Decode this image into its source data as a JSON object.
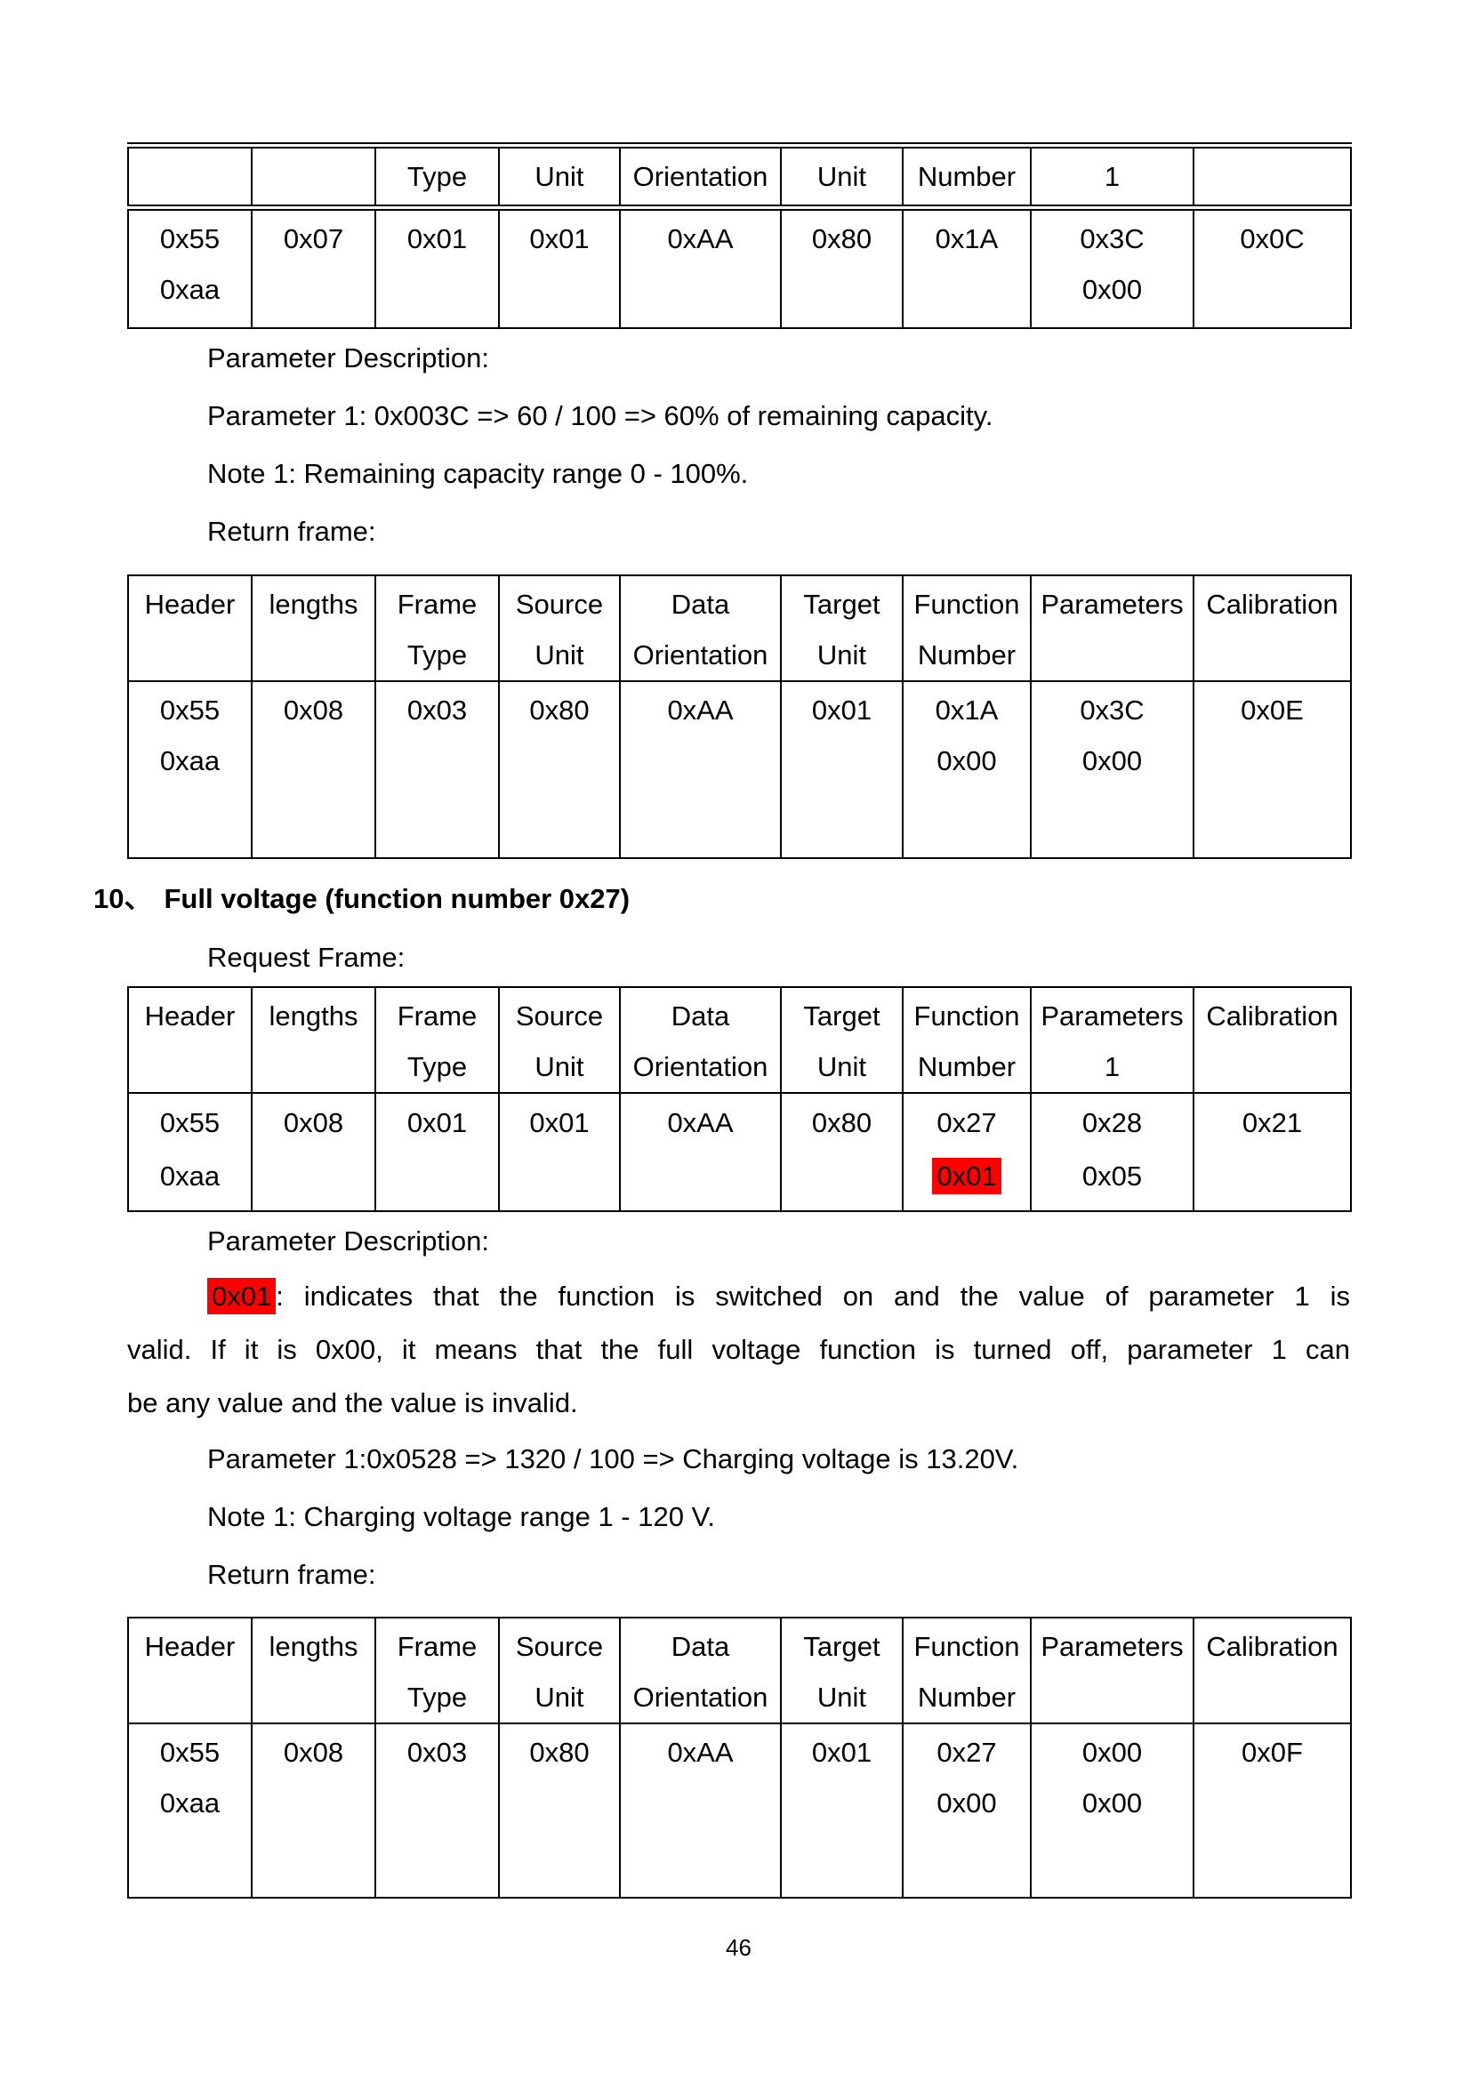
{
  "document": {
    "footer_page_number": "46",
    "highlight_color": "#ff0000"
  },
  "section_remaining_capacity": {
    "parameter_description_label": "Parameter Description:",
    "parameter_1_line": "Parameter 1: 0x003C => 60 / 100 => 60% of remaining capacity.",
    "note_1_line": "Note 1: Remaining capacity range 0 - 100%.",
    "return_frame_label": "Return frame:"
  },
  "section_full_voltage": {
    "heading_number": "10、",
    "heading_text": "Full voltage (function number 0x27)",
    "request_frame_label": "Request Frame:",
    "parameter_description_label": "Parameter Description:",
    "paragraph": {
      "line1_highlight": "0x01",
      "line1_rest": ": indicates that the function is switched on and the value of parameter 1 is",
      "line2": "valid. If it is 0x00, it means that the full voltage function is turned off, parameter 1 can",
      "line3": "be any value and the value is invalid."
    },
    "parameter_1_line": "Parameter 1:0x0528 => 1320 / 100 => Charging voltage is 13.20V.",
    "note_1_line": "Note 1: Charging voltage range 1 - 120 V.",
    "return_frame_label": "Return frame:"
  },
  "tables": [
    {
      "name": "request-frame-continued",
      "header": [
        [
          ""
        ],
        [
          ""
        ],
        [
          "Type"
        ],
        [
          "Unit"
        ],
        [
          "Orientation"
        ],
        [
          "Unit"
        ],
        [
          "Number"
        ],
        [
          "1"
        ],
        [
          ""
        ]
      ],
      "row": [
        [
          "0x55",
          "0xaa"
        ],
        [
          "0x07"
        ],
        [
          "0x01"
        ],
        [
          "0x01"
        ],
        [
          "0xAA"
        ],
        [
          "0x80"
        ],
        [
          "0x1A"
        ],
        [
          "0x3C",
          "0x00"
        ],
        [
          "0x0C"
        ]
      ]
    },
    {
      "name": "return-frame-0x1A",
      "header": [
        [
          "Header"
        ],
        [
          "lengths"
        ],
        [
          "Frame",
          "Type"
        ],
        [
          "Source",
          "Unit"
        ],
        [
          "Data",
          "Orientation"
        ],
        [
          "Target",
          "Unit"
        ],
        [
          "Function",
          "Number"
        ],
        [
          "Parameters"
        ],
        [
          "Calibration"
        ]
      ],
      "row": [
        [
          "0x55",
          "0xaa"
        ],
        [
          "0x08"
        ],
        [
          "0x03"
        ],
        [
          "0x80"
        ],
        [
          "0xAA"
        ],
        [
          "0x01"
        ],
        [
          "0x1A",
          "0x00"
        ],
        [
          "0x3C",
          "0x00"
        ],
        [
          "0x0E"
        ]
      ]
    },
    {
      "name": "request-frame-0x27",
      "header": [
        [
          "Header"
        ],
        [
          "lengths"
        ],
        [
          "Frame",
          "Type"
        ],
        [
          "Source",
          "Unit"
        ],
        [
          "Data",
          "Orientation"
        ],
        [
          "Target",
          "Unit"
        ],
        [
          "Function",
          "Number"
        ],
        [
          "Parameters",
          "1"
        ],
        [
          "Calibration"
        ]
      ],
      "row": [
        [
          "0x55",
          "0xaa"
        ],
        [
          "0x08"
        ],
        [
          "0x01"
        ],
        [
          "0x01"
        ],
        [
          "0xAA"
        ],
        [
          "0x80"
        ],
        [
          "0x27",
          {
            "text": "0x01",
            "highlight": true
          }
        ],
        [
          "0x28",
          "0x05"
        ],
        [
          "0x21"
        ]
      ]
    },
    {
      "name": "return-frame-0x27",
      "header": [
        [
          "Header"
        ],
        [
          "lengths"
        ],
        [
          "Frame",
          "Type"
        ],
        [
          "Source",
          "Unit"
        ],
        [
          "Data",
          "Orientation"
        ],
        [
          "Target",
          "Unit"
        ],
        [
          "Function",
          "Number"
        ],
        [
          "Parameters"
        ],
        [
          "Calibration"
        ]
      ],
      "row": [
        [
          "0x55",
          "0xaa"
        ],
        [
          "0x08"
        ],
        [
          "0x03"
        ],
        [
          "0x80"
        ],
        [
          "0xAA"
        ],
        [
          "0x01"
        ],
        [
          "0x27",
          "0x00"
        ],
        [
          "0x00",
          "0x00"
        ],
        [
          "0x0F"
        ]
      ]
    }
  ]
}
